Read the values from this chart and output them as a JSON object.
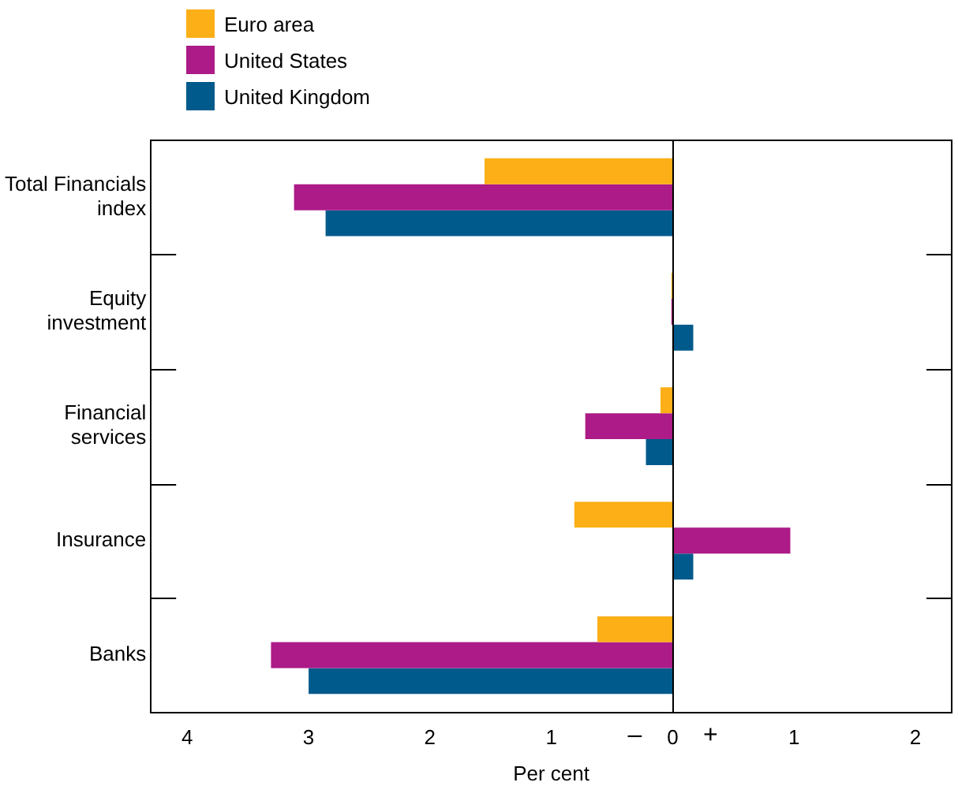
{
  "chart_data": {
    "type": "bar",
    "orientation": "horizontal",
    "xlabel": "Per cent",
    "categories": [
      "Total Financials index",
      "Equity investment",
      "Financial services",
      "Insurance",
      "Banks"
    ],
    "series": [
      {
        "name": "Euro area",
        "color": "#fcaf17",
        "values": [
          -1.55,
          -0.01,
          -0.1,
          -0.81,
          -0.62
        ]
      },
      {
        "name": "United States",
        "color": "#ac1b87",
        "values": [
          -3.12,
          -0.01,
          -0.72,
          0.97,
          -3.31
        ]
      },
      {
        "name": "United Kingdom",
        "color": "#005a8c",
        "values": [
          -2.86,
          0.17,
          -0.22,
          0.17,
          -3.0
        ]
      }
    ],
    "xlim": [
      -4.3,
      2.3
    ],
    "xticks": [
      {
        "value": -4,
        "label": "4"
      },
      {
        "value": -3,
        "label": "3"
      },
      {
        "value": -2,
        "label": "2"
      },
      {
        "value": -1,
        "label": "1"
      },
      0,
      1,
      2
    ],
    "annotations": [
      "–",
      "+"
    ],
    "ref_lines": [
      {
        "axis": "x",
        "value": 0,
        "color": "#000000"
      }
    ],
    "legend": "top left",
    "grid": false
  }
}
